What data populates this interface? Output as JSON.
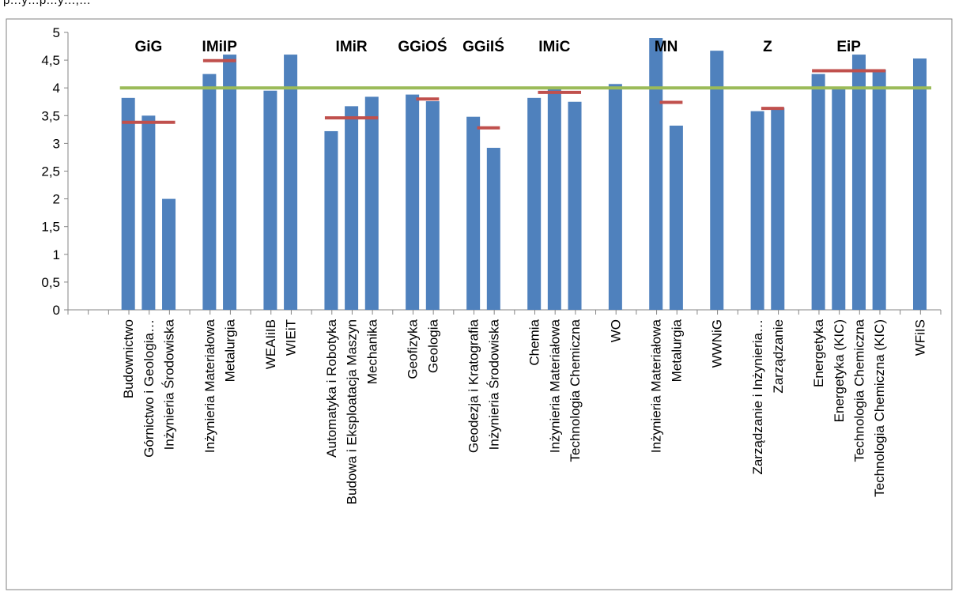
{
  "top_text": "p…y…p…y…,…",
  "chart_data": {
    "type": "bar",
    "ylim": [
      0,
      5
    ],
    "yticks": [
      "0",
      "0,5",
      "1",
      "1,5",
      "2",
      "2,5",
      "3",
      "3,5",
      "4",
      "4,5",
      "5"
    ],
    "grid": false,
    "legend": "none",
    "reference_line": {
      "value": 4,
      "color": "#9BBB59"
    },
    "bar_color": "#4F81BD",
    "avg_color": "#C0504D",
    "slots": 41,
    "bars": [
      {
        "slot": 3,
        "label": "Budownictwo",
        "value": 3.82
      },
      {
        "slot": 4,
        "label": "Górnictwo i Geologia…",
        "value": 3.5
      },
      {
        "slot": 5,
        "label": "Inżynieria Środowiska",
        "value": 2.0
      },
      {
        "slot": 7,
        "label": "Inżynieria Materiałowa",
        "value": 4.25
      },
      {
        "slot": 8,
        "label": "Metalurgia",
        "value": 4.6
      },
      {
        "slot": 10,
        "label": "WEAIiIB",
        "value": 3.95
      },
      {
        "slot": 11,
        "label": "WIEiT",
        "value": 4.6
      },
      {
        "slot": 13,
        "label": "Automatyka i Robotyka",
        "value": 3.22
      },
      {
        "slot": 14,
        "label": "Budowa i Eksploatacja Maszyn",
        "value": 3.67
      },
      {
        "slot": 15,
        "label": "Mechanika",
        "value": 3.84
      },
      {
        "slot": 17,
        "label": "Geofizyka",
        "value": 3.88
      },
      {
        "slot": 18,
        "label": "Geologia",
        "value": 3.76
      },
      {
        "slot": 20,
        "label": "Geodezja i Kratografia",
        "value": 3.48
      },
      {
        "slot": 21,
        "label": "Inżynieria Środowiska",
        "value": 2.92
      },
      {
        "slot": 23,
        "label": "Chemia",
        "value": 3.82
      },
      {
        "slot": 24,
        "label": "Inżynieria Materiałowa",
        "value": 4.02
      },
      {
        "slot": 25,
        "label": "Technologia Chemiczna",
        "value": 3.75
      },
      {
        "slot": 27,
        "label": "WO",
        "value": 4.07
      },
      {
        "slot": 29,
        "label": "Inżynieria Materiałowa",
        "value": 4.9
      },
      {
        "slot": 30,
        "label": "Metalurgia",
        "value": 3.32
      },
      {
        "slot": 32,
        "label": "WWNiG",
        "value": 4.67
      },
      {
        "slot": 34,
        "label": "Zarządzanie i Inżynieria…",
        "value": 3.58
      },
      {
        "slot": 35,
        "label": "Zarządzanie",
        "value": 3.64
      },
      {
        "slot": 37,
        "label": "Energetyka",
        "value": 4.25
      },
      {
        "slot": 38,
        "label": "Energetyka (KIC)",
        "value": 4.0
      },
      {
        "slot": 39,
        "label": "Technologia Chemiczna",
        "value": 4.6
      },
      {
        "slot": 40,
        "label": "Technologia Chemiczna (KIC)",
        "value": 4.33
      },
      {
        "slot": 42,
        "label": "WFiIS",
        "value": 4.53
      }
    ],
    "groups": [
      {
        "label": "GiG",
        "center_slot": 4,
        "avg": 3.38,
        "from_slot": 3,
        "to_slot": 5
      },
      {
        "label": "IMiIP",
        "center_slot": 7.5,
        "avg": 4.49,
        "from_slot": 7,
        "to_slot": 8
      },
      {
        "label": "IMiR",
        "center_slot": 14,
        "avg": 3.46,
        "from_slot": 13,
        "to_slot": 15
      },
      {
        "label": "GGiOŚ",
        "center_slot": 17.5,
        "avg": 3.8,
        "from_slot": 17.5,
        "to_slot": 18
      },
      {
        "label": "GGiIŚ",
        "center_slot": 20.5,
        "avg": 3.28,
        "from_slot": 20.5,
        "to_slot": 21
      },
      {
        "label": "IMiC",
        "center_slot": 24,
        "avg": 3.92,
        "from_slot": 23.5,
        "to_slot": 25
      },
      {
        "label": "MN",
        "center_slot": 29.5,
        "avg": 3.74,
        "from_slot": 29.5,
        "to_slot": 30
      },
      {
        "label": "Z",
        "center_slot": 34.5,
        "avg": 3.63,
        "from_slot": 34.5,
        "to_slot": 35
      },
      {
        "label": "EiP",
        "center_slot": 38.5,
        "avg": 4.31,
        "from_slot": 37,
        "to_slot": 40
      }
    ]
  }
}
